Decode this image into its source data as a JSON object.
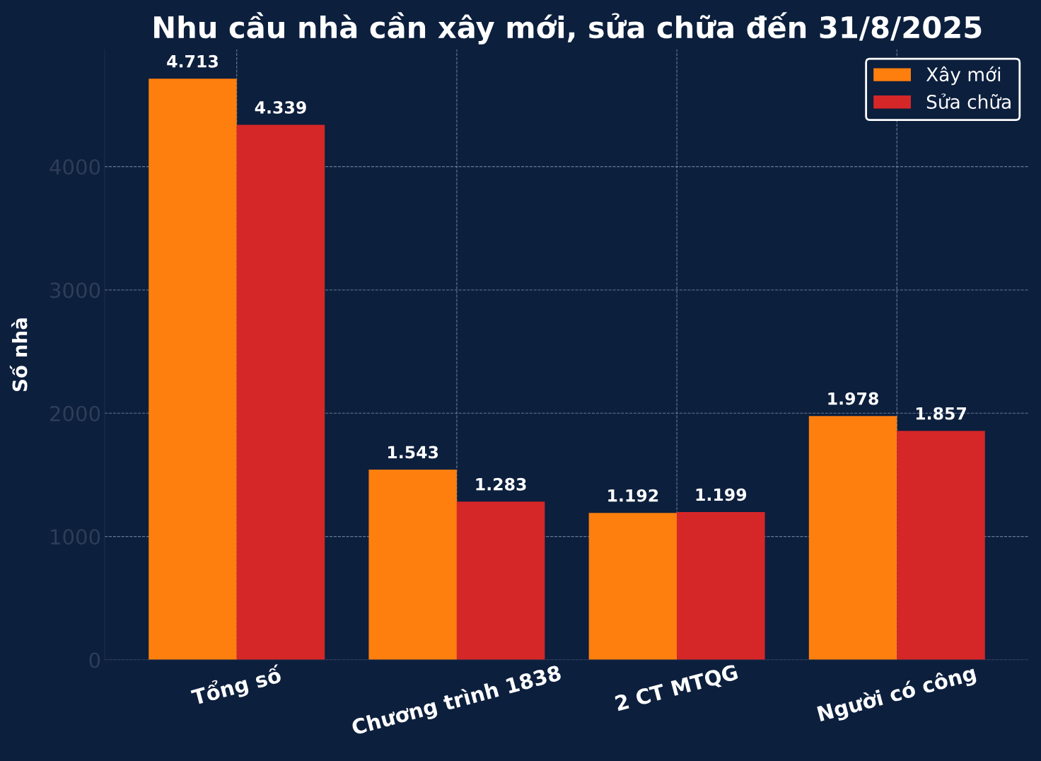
{
  "chart_data": {
    "type": "bar",
    "title": "Nhu cầu nhà cần xây mới, sửa chữa đến 31/8/2025",
    "ylabel": "Số nhà",
    "categories": [
      "Tổng số",
      "Chương trình 1838",
      "2 CT MTQG",
      "Người có công"
    ],
    "series": [
      {
        "name": "Xây mới",
        "color": "#ff7f0e",
        "values": [
          4713,
          1543,
          1192,
          1978
        ],
        "value_labels": [
          "4.713",
          "1.543",
          "1.192",
          "1.978"
        ]
      },
      {
        "name": "Sửa chữa",
        "color": "#d62728",
        "values": [
          4339,
          1283,
          1199,
          1857
        ],
        "value_labels": [
          "4.339",
          "1.283",
          "1.199",
          "1.857"
        ]
      }
    ],
    "ylim": [
      0,
      4950
    ],
    "yticks": [
      0,
      1000,
      2000,
      3000,
      4000
    ],
    "grid": true,
    "legend": "top right"
  }
}
